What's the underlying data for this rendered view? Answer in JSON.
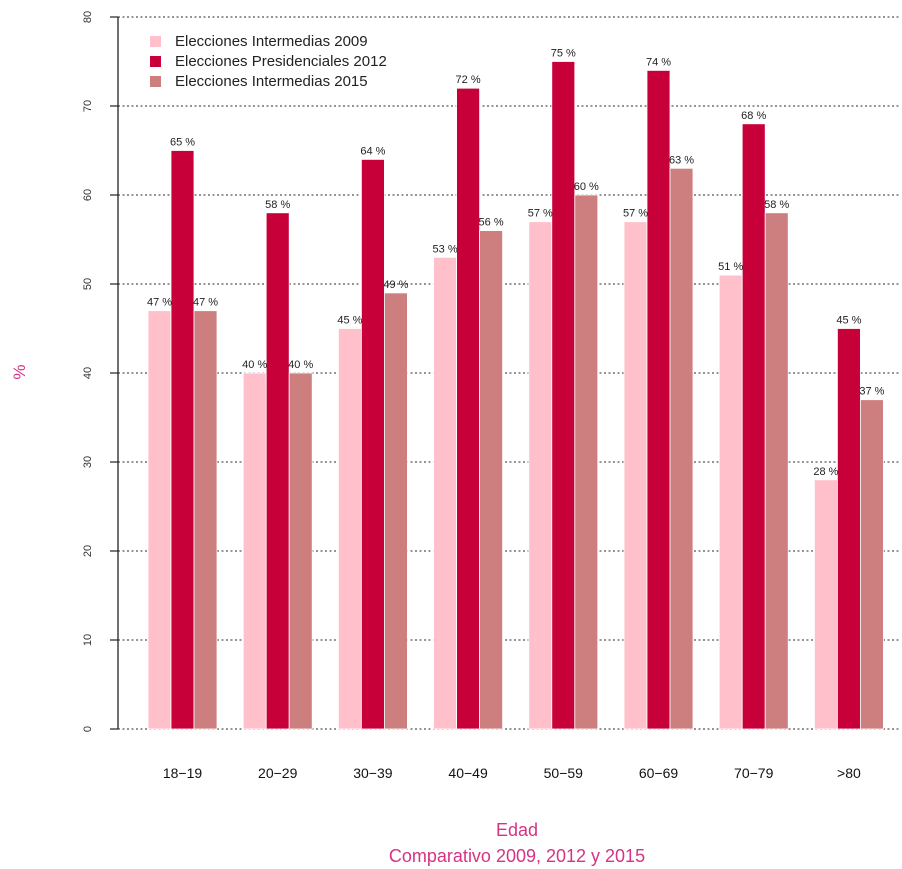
{
  "chart_data": {
    "type": "bar",
    "xlabel": "Edad",
    "subtitle": "Comparativo 2009, 2012 y 2015",
    "ylabel": "%",
    "ylim": [
      0,
      80
    ],
    "yticks": [
      0,
      10,
      20,
      30,
      40,
      50,
      60,
      70,
      80
    ],
    "grid": true,
    "legend_position": "top-left",
    "categories": [
      "18−19",
      "20−29",
      "30−39",
      "40−49",
      "50−59",
      "60−69",
      "70−79",
      ">80"
    ],
    "series": [
      {
        "name": "Elecciones Intermedias 2009",
        "color": "#ffc0cb",
        "values": [
          47,
          40,
          45,
          53,
          57,
          57,
          51,
          28
        ],
        "labels": [
          "47 %",
          "40 %",
          "45 %",
          "53 %",
          "57 %",
          "57 %",
          "51 %",
          "28 %"
        ]
      },
      {
        "name": "Elecciones Presidenciales 2012",
        "color": "#c8003a",
        "values": [
          65,
          58,
          64,
          72,
          75,
          74,
          68,
          45
        ],
        "labels": [
          "65 %",
          "58 %",
          "64 %",
          "72 %",
          "75 %",
          "74 %",
          "68 %",
          "45 %"
        ]
      },
      {
        "name": "Elecciones Intermedias 2015",
        "color": "#cd7f7f",
        "values": [
          47,
          40,
          49,
          56,
          60,
          63,
          58,
          37
        ],
        "labels": [
          "47 %",
          "40 %",
          "49 %",
          "56 %",
          "60 %",
          "63 %",
          "58 %",
          "37 %"
        ]
      }
    ],
    "axis_title_color": "#d63384"
  }
}
